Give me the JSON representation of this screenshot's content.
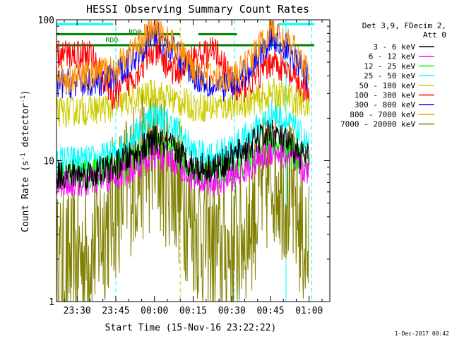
{
  "chart_data": {
    "type": "line",
    "title": "HESSI Observing Summary Count Rates",
    "xlabel": "Start Time (15-Nov-16 23:22:22)",
    "ylabel_main": "Count Rate (s",
    "ylabel_sup": "-1",
    "ylabel_tail": " detector",
    "ylabel_end": ")",
    "y_scale": "log",
    "ylim": [
      1,
      100
    ],
    "xlim": [
      -8,
      98
    ],
    "x_unit": "minutes after 23:30 UT (15-Nov-16)",
    "y_tick_labels": [
      {
        "value": 1,
        "label": "1"
      },
      {
        "value": 10,
        "label": "10"
      },
      {
        "value": 100,
        "label": "100"
      }
    ],
    "x_tick_labels": [
      {
        "value": 0,
        "label": "23:30"
      },
      {
        "value": 15,
        "label": "23:45"
      },
      {
        "value": 30,
        "label": "00:00"
      },
      {
        "value": 45,
        "label": "00:15"
      },
      {
        "value": 60,
        "label": "00:30"
      },
      {
        "value": 75,
        "label": "00:45"
      },
      {
        "value": 90,
        "label": "01:00"
      }
    ],
    "legend_header": [
      "Det 3,9, FDecim 2,",
      "Att 0"
    ],
    "legend_position": "right",
    "series": [
      {
        "name": "3 - 6 keV",
        "color": "#000000",
        "x": [
          -8,
          5,
          14,
          22,
          30,
          38,
          46,
          54,
          62,
          70,
          76,
          84,
          91
        ],
        "y": [
          8,
          8,
          9,
          11,
          14,
          12,
          9,
          9,
          11,
          14,
          16,
          12,
          10
        ]
      },
      {
        "name": "6 - 12 keV",
        "color": "#ff00ff",
        "x": [
          -8,
          5,
          14,
          22,
          30,
          38,
          46,
          54,
          62,
          70,
          76,
          84,
          91
        ],
        "y": [
          7,
          7,
          7.5,
          9,
          11,
          10,
          7,
          7,
          8,
          10,
          12,
          10,
          8
        ]
      },
      {
        "name": "12 - 25 keV",
        "color": "#00ff00",
        "x": [
          -8,
          5,
          14,
          22,
          30,
          38,
          46,
          54,
          62,
          70,
          76,
          84,
          91
        ],
        "y": [
          8,
          8,
          9,
          10,
          13,
          11,
          8,
          8,
          9,
          11,
          13,
          11,
          9
        ]
      },
      {
        "name": "25 - 50 keV",
        "color": "#00ffff",
        "x": [
          -8,
          5,
          14,
          22,
          30,
          38,
          46,
          54,
          62,
          70,
          76,
          84,
          91
        ],
        "y": [
          10,
          10,
          11,
          15,
          22,
          17,
          11,
          11,
          13,
          17,
          22,
          17,
          12
        ]
      },
      {
        "name": "50 - 100 keV",
        "color": "#cccc00",
        "x": [
          -8,
          5,
          14,
          22,
          30,
          38,
          46,
          54,
          62,
          70,
          76,
          84,
          91
        ],
        "y": [
          22,
          23,
          24,
          27,
          30,
          27,
          24,
          24,
          25,
          27,
          30,
          27,
          24
        ]
      },
      {
        "name": "100 - 300 keV",
        "color": "#ff0000",
        "x": [
          -8,
          5,
          14,
          22,
          30,
          38,
          46,
          54,
          62,
          70,
          76,
          84,
          91
        ],
        "y": [
          56,
          58,
          28,
          40,
          60,
          42,
          55,
          60,
          30,
          40,
          52,
          38,
          28
        ]
      },
      {
        "name": "300 - 800 keV",
        "color": "#0000ff",
        "x": [
          -8,
          5,
          14,
          22,
          30,
          38,
          46,
          54,
          62,
          70,
          76,
          84,
          91
        ],
        "y": [
          35,
          36,
          38,
          55,
          80,
          58,
          40,
          33,
          35,
          55,
          78,
          55,
          35
        ]
      },
      {
        "name": "800 - 7000 keV",
        "color": "#ff8c00",
        "x": [
          -8,
          5,
          14,
          22,
          30,
          38,
          46,
          54,
          62,
          70,
          76,
          84,
          91
        ],
        "y": [
          38,
          40,
          44,
          62,
          88,
          64,
          44,
          38,
          40,
          62,
          85,
          62,
          38
        ]
      },
      {
        "name": "7000 - 20000 keV",
        "color": "#808000",
        "x": [
          -8,
          5,
          14,
          22,
          30,
          38,
          46,
          54,
          62,
          70,
          76,
          84,
          91
        ],
        "y": [
          1.7,
          2.2,
          4.5,
          8,
          11,
          7,
          3.5,
          2.2,
          2.5,
          5,
          9,
          5,
          1.8
        ]
      }
    ],
    "annotations": [
      {
        "text": "RD0",
        "x": 20,
        "y": 79,
        "color": "#008000"
      },
      {
        "text": "RD0",
        "x": 11,
        "y": 69,
        "color": "#008000"
      }
    ],
    "flag_bars": [
      {
        "label": "",
        "color": "#00ffff",
        "x0": -8,
        "x1": 14,
        "y": 93
      },
      {
        "label": "",
        "color": "#00ffff",
        "x0": 78,
        "x1": 92,
        "y": 93
      },
      {
        "label": "",
        "color": "#008000",
        "x0": -8,
        "x1": 92,
        "y": 66
      },
      {
        "label": "",
        "color": "#008000",
        "x0": -8,
        "x1": 40,
        "y": 79
      },
      {
        "label": "",
        "color": "#008000",
        "x0": 47,
        "x1": 62,
        "y": 79
      }
    ],
    "event_lines": [
      {
        "x": -8,
        "color": "#00ffff",
        "style": "solid"
      },
      {
        "x": 15,
        "color": "#00ffff",
        "style": "dashed"
      },
      {
        "x": 40,
        "color": "#cccc00",
        "style": "dashed"
      },
      {
        "x": 61,
        "color": "#00ffff",
        "style": "dashed"
      },
      {
        "x": 81,
        "color": "#00ffff",
        "style": "solid"
      },
      {
        "x": 91,
        "color": "#00ffff",
        "style": "dashed"
      }
    ],
    "timestamp": "1-Dec-2017 00:42"
  }
}
